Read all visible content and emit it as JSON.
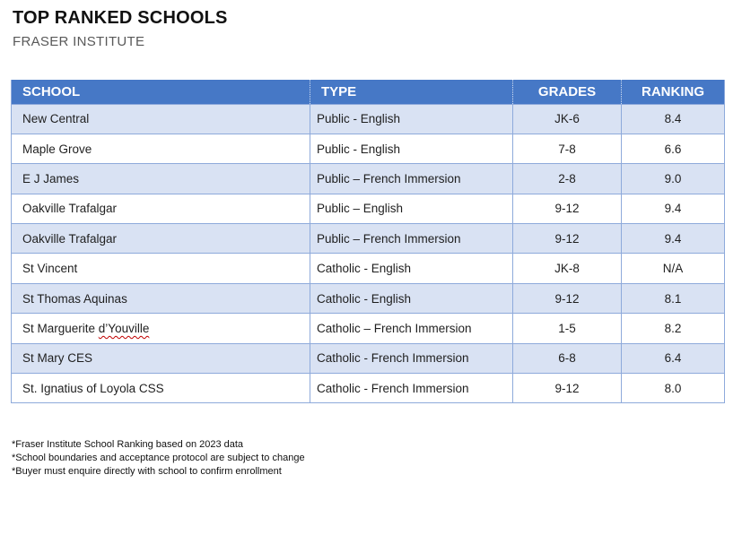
{
  "header": {
    "title": "TOP RANKED SCHOOLS",
    "subtitle": "FRASER INSTITUTE"
  },
  "table": {
    "columns": [
      "SCHOOL",
      "TYPE",
      "GRADES",
      "RANKING"
    ],
    "rows": [
      {
        "school": "New Central",
        "type": "Public - English",
        "grades": "JK-6",
        "ranking": "8.4"
      },
      {
        "school": "Maple Grove",
        "type": "Public - English",
        "grades": "7-8",
        "ranking": "6.6"
      },
      {
        "school": "E J James",
        "type": "Public – French Immersion",
        "grades": "2-8",
        "ranking": "9.0"
      },
      {
        "school": "Oakville Trafalgar",
        "type": "Public – English",
        "grades": "9-12",
        "ranking": "9.4"
      },
      {
        "school": "Oakville Trafalgar",
        "type": "Public – French Immersion",
        "grades": "9-12",
        "ranking": "9.4"
      },
      {
        "school": "St Vincent",
        "type": "Catholic - English",
        "grades": "JK-8",
        "ranking": "N/A"
      },
      {
        "school": "St Thomas Aquinas",
        "type": "Catholic - English",
        "grades": "9-12",
        "ranking": "8.1"
      },
      {
        "school": "St Marguerite d’Youville",
        "type": "Catholic – French Immersion",
        "grades": "1-5",
        "ranking": "8.2",
        "squiggle": "d’Youville"
      },
      {
        "school": "St Mary CES",
        "type": "Catholic - French Immersion",
        "grades": "6-8",
        "ranking": "6.4"
      },
      {
        "school": "St. Ignatius of Loyola CSS",
        "type": "Catholic - French Immersion",
        "grades": "9-12",
        "ranking": "8.0"
      }
    ]
  },
  "footnotes": [
    "*Fraser Institute School Ranking based on 2023 data",
    "*School boundaries and acceptance protocol are subject to change",
    "*Buyer must enquire directly with school to confirm enrollment"
  ],
  "colors": {
    "header_bg": "#4678C6",
    "band_bg": "#D9E2F3",
    "table_border": "#8EAADB",
    "header_text": "#FFFFFF",
    "subtitle_text": "#595959",
    "squiggle": "#C00000"
  }
}
